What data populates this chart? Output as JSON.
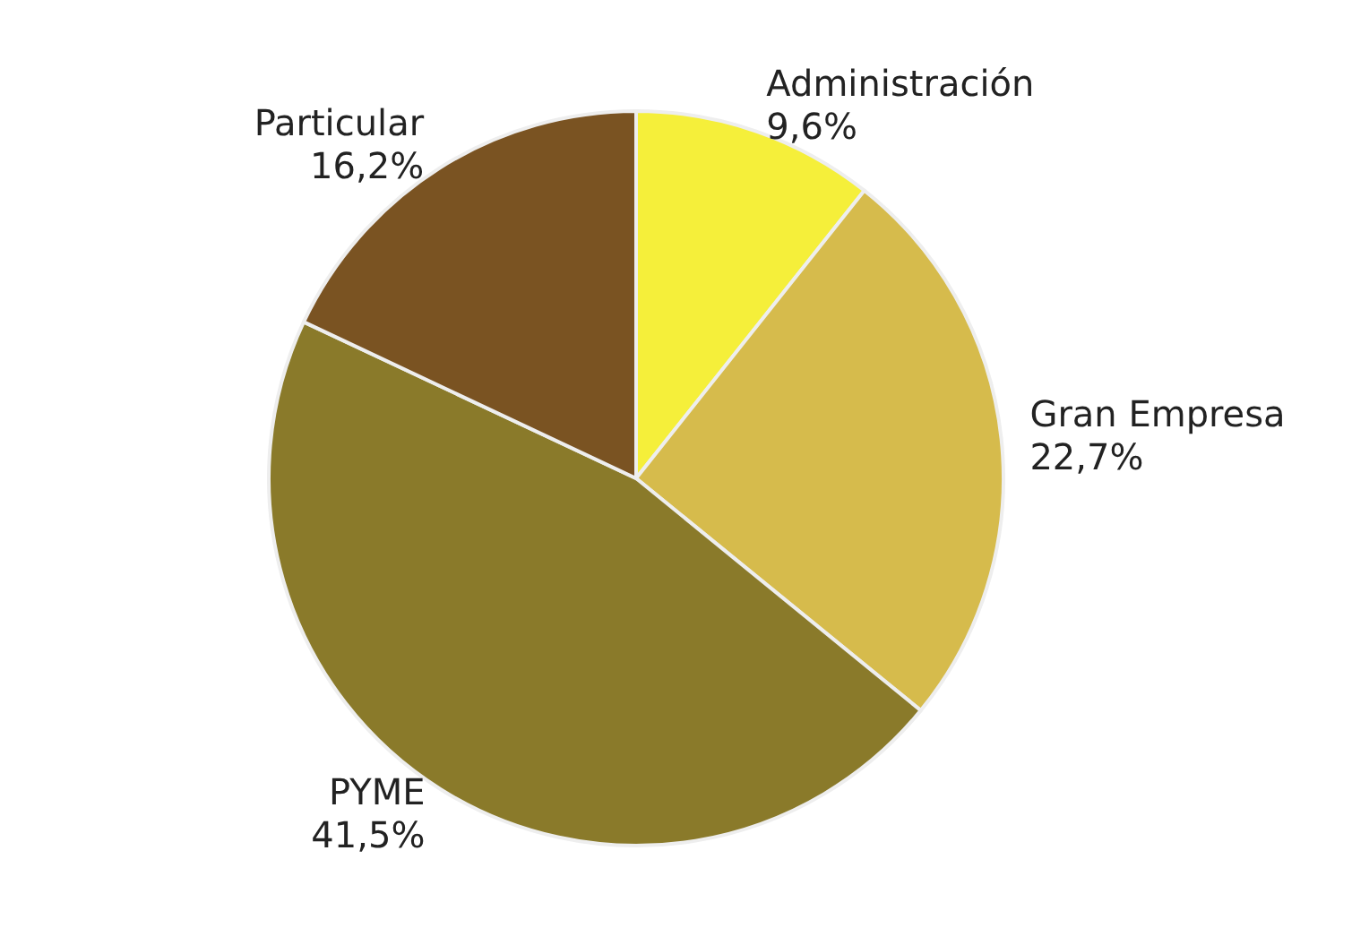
{
  "chart_data": {
    "type": "pie",
    "categories": [
      "Administración",
      "Gran Empresa",
      "PYME",
      "Particular"
    ],
    "values": [
      9.6,
      22.7,
      41.5,
      16.2
    ],
    "value_labels": [
      "9,6%",
      "22,7%",
      "41,5%",
      "16,2%"
    ],
    "colors": [
      "#f5ef3a",
      "#d6bb4c",
      "#8a7a2a",
      "#7a5322"
    ],
    "legend": false
  }
}
